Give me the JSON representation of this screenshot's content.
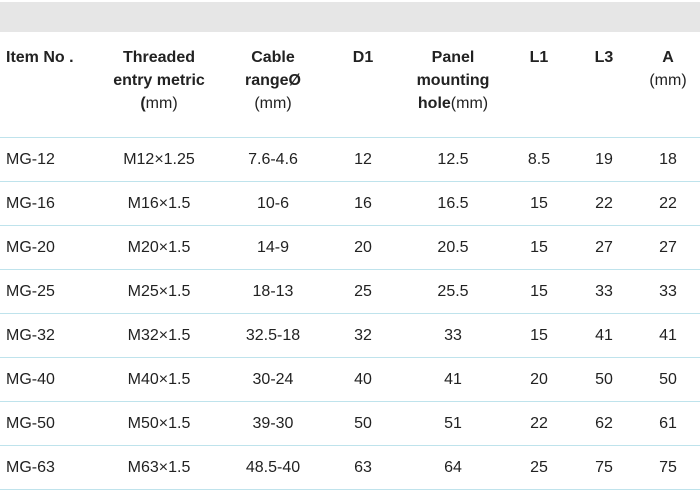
{
  "headers": [
    {
      "lines": [
        "Item No ."
      ],
      "unit": ""
    },
    {
      "lines": [
        "Threaded",
        "entry metric"
      ],
      "unit_line_bold_prefix": "(",
      "unit": "mm)"
    },
    {
      "lines": [
        "Cable",
        "rangeØ"
      ],
      "unit": "(mm)"
    },
    {
      "lines": [
        "D1"
      ],
      "unit": ""
    },
    {
      "lines": [
        "Panel",
        "mounting",
        "hole"
      ],
      "unit": "(mm)"
    },
    {
      "lines": [
        "L1"
      ],
      "unit": ""
    },
    {
      "lines": [
        "L3"
      ],
      "unit": ""
    },
    {
      "lines": [
        "A"
      ],
      "unit": "(mm)"
    }
  ],
  "rows": [
    [
      "MG-12",
      "M12×1.25",
      "7.6-4.6",
      "12",
      "12.5",
      "8.5",
      "19",
      "18"
    ],
    [
      "MG-16",
      "M16×1.5",
      "10-6",
      "16",
      "16.5",
      "15",
      "22",
      "22"
    ],
    [
      "MG-20",
      "M20×1.5",
      "14-9",
      "20",
      "20.5",
      "15",
      "27",
      "27"
    ],
    [
      "MG-25",
      "M25×1.5",
      "18-13",
      "25",
      "25.5",
      "15",
      "33",
      "33"
    ],
    [
      "MG-32",
      "M32×1.5",
      "32.5-18",
      "32",
      "33",
      "15",
      "41",
      "41"
    ],
    [
      "MG-40",
      "M40×1.5",
      "30-24",
      "40",
      "41",
      "20",
      "50",
      "50"
    ],
    [
      "MG-50",
      "M50×1.5",
      "39-30",
      "50",
      "51",
      "22",
      "62",
      "61"
    ],
    [
      "MG-63",
      "M63×1.5",
      "48.5-40",
      "63",
      "64",
      "25",
      "75",
      "75"
    ]
  ]
}
